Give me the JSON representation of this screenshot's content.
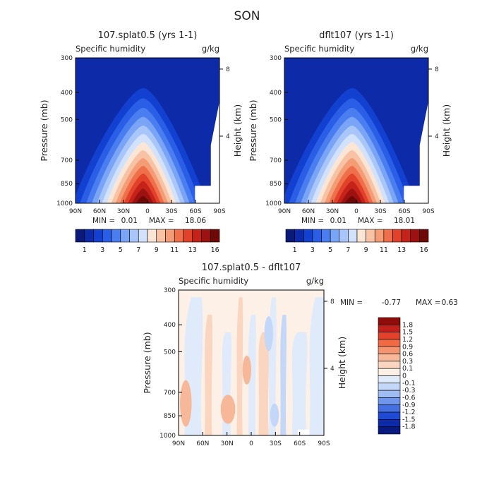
{
  "figure": {
    "title": "SON"
  },
  "chart_data": [
    {
      "type": "heatmap",
      "id": "top_left",
      "title": "107.splat0.5 (yrs 1-1)",
      "variable": "Specific humidity",
      "units": "g/kg",
      "xlabel": "",
      "ylabel": "Pressure (mb)",
      "y2label": "Height (km)",
      "x_ticks": [
        "90N",
        "60N",
        "30N",
        "0",
        "30S",
        "60S",
        "90S"
      ],
      "y_ticks": [
        300,
        400,
        500,
        700,
        850,
        1000
      ],
      "y2_ticks": [
        8,
        4
      ],
      "ylim": [
        1000,
        300
      ],
      "min_label": "MIN =",
      "min": "0.01",
      "max_label": "MAX =",
      "max": "18.06",
      "colorbar_labels": [
        "1",
        "3",
        "5",
        "7",
        "9",
        "11",
        "13",
        "16"
      ],
      "colorbar_colors": [
        "#0a1a7a",
        "#0d2ba8",
        "#1240d0",
        "#2a5ee6",
        "#4a7ef0",
        "#7aa4f6",
        "#a9c6fa",
        "#d2e2fc",
        "#fbe6d6",
        "#f8c3a4",
        "#f49c76",
        "#ef6f4b",
        "#e2412a",
        "#c5231a",
        "#9b1210",
        "#6e0906"
      ]
    },
    {
      "type": "heatmap",
      "id": "top_right",
      "title": "dflt107 (yrs 1-1)",
      "variable": "Specific humidity",
      "units": "g/kg",
      "xlabel": "",
      "ylabel": "Pressure (mb)",
      "y2label": "Height (km)",
      "x_ticks": [
        "90N",
        "60N",
        "30N",
        "0",
        "30S",
        "60S",
        "90S"
      ],
      "y_ticks": [
        300,
        400,
        500,
        700,
        850,
        1000
      ],
      "y2_ticks": [
        8,
        4
      ],
      "ylim": [
        1000,
        300
      ],
      "min_label": "MIN =",
      "min": "0.01",
      "max_label": "MAX =",
      "max": "18.01",
      "colorbar_labels": [
        "1",
        "3",
        "5",
        "7",
        "9",
        "11",
        "13",
        "16"
      ],
      "colorbar_colors": [
        "#0a1a7a",
        "#0d2ba8",
        "#1240d0",
        "#2a5ee6",
        "#4a7ef0",
        "#7aa4f6",
        "#a9c6fa",
        "#d2e2fc",
        "#fbe6d6",
        "#f8c3a4",
        "#f49c76",
        "#ef6f4b",
        "#e2412a",
        "#c5231a",
        "#9b1210",
        "#6e0906"
      ]
    },
    {
      "type": "heatmap",
      "id": "difference",
      "title": "107.splat0.5 - dflt107",
      "variable": "Specific humidity",
      "units": "g/kg",
      "xlabel": "",
      "ylabel": "Pressure (mb)",
      "y2label": "Height (km)",
      "x_ticks": [
        "90N",
        "60N",
        "30N",
        "0",
        "30S",
        "60S",
        "90S"
      ],
      "y_ticks": [
        300,
        400,
        500,
        700,
        850,
        1000
      ],
      "y2_ticks": [
        8,
        4
      ],
      "ylim": [
        1000,
        300
      ],
      "min_label": "MIN =",
      "min": "-0.77",
      "max_label": "MAX =",
      "max": "0.63",
      "colorbar_labels": [
        "1.8",
        "1.5",
        "1.2",
        "0.9",
        "0.6",
        "0.3",
        "0.1",
        "0",
        "-0.1",
        "-0.3",
        "-0.6",
        "-0.9",
        "-1.2",
        "-1.5",
        "-1.8"
      ],
      "colorbar_colors": [
        "#8e0c0a",
        "#c0211a",
        "#e2412a",
        "#f06a44",
        "#f49470",
        "#f7b89a",
        "#fad6c0",
        "#fdf0e6",
        "#dfeafb",
        "#c3d7f8",
        "#9fbcf3",
        "#6f96ec",
        "#4570e2",
        "#1f4ad4",
        "#0d2ba8",
        "#081a80"
      ]
    }
  ]
}
